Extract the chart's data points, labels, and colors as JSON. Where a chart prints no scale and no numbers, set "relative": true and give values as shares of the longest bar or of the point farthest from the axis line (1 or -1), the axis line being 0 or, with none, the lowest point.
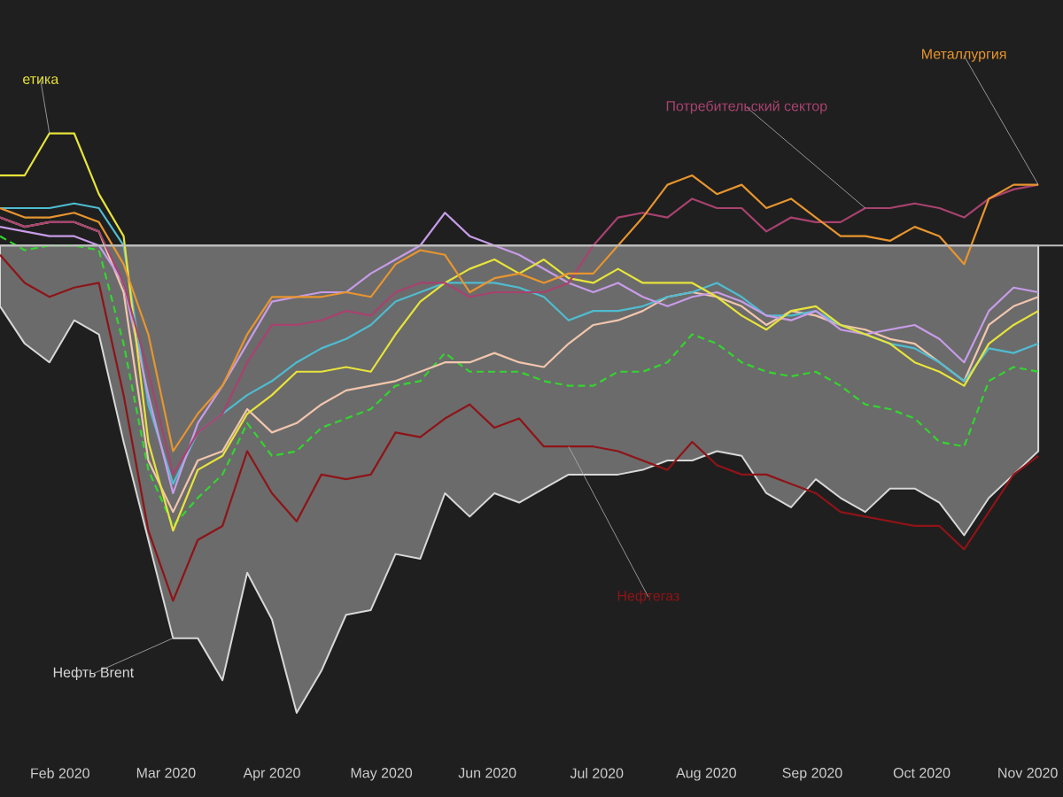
{
  "chart_data": {
    "type": "line",
    "relative": true,
    "x": [
      "2020-01-29",
      "2020-02-05",
      "2020-02-12",
      "2020-02-19",
      "2020-02-26",
      "2020-03-04",
      "2020-03-11",
      "2020-03-18",
      "2020-03-25",
      "2020-04-01",
      "2020-04-08",
      "2020-04-15",
      "2020-04-22",
      "2020-04-29",
      "2020-05-06",
      "2020-05-13",
      "2020-05-20",
      "2020-05-27",
      "2020-06-03",
      "2020-06-10",
      "2020-06-17",
      "2020-06-24",
      "2020-07-01",
      "2020-07-08",
      "2020-07-15",
      "2020-07-22",
      "2020-07-29",
      "2020-08-05",
      "2020-08-12",
      "2020-08-19",
      "2020-08-26",
      "2020-09-02",
      "2020-09-09",
      "2020-09-16",
      "2020-09-23",
      "2020-09-30",
      "2020-10-07",
      "2020-10-14",
      "2020-10-21",
      "2020-10-28",
      "2020-11-04",
      "2020-11-11",
      "2020-11-18"
    ],
    "xlim": [
      "2020-01-29",
      "2020-11-25"
    ],
    "xticks": [
      {
        "value": "2020-02-15",
        "label": "Feb 2020"
      },
      {
        "value": "2020-03-16",
        "label": "Mar 2020"
      },
      {
        "value": "2020-04-15",
        "label": "Apr 2020"
      },
      {
        "value": "2020-05-16",
        "label": "May 2020"
      },
      {
        "value": "2020-06-15",
        "label": "Jun 2020"
      },
      {
        "value": "2020-07-16",
        "label": "Jul 2020"
      },
      {
        "value": "2020-08-16",
        "label": "Aug 2020"
      },
      {
        "value": "2020-09-15",
        "label": "Sep 2020"
      },
      {
        "value": "2020-10-16",
        "label": "Oct 2020"
      },
      {
        "value": "2020-11-15",
        "label": "Nov 2020"
      }
    ],
    "series": [
      {
        "name": "Нефть Brent",
        "type": "area",
        "color": "#d8d8d8",
        "values": [
          -0.13,
          -0.21,
          -0.25,
          -0.16,
          -0.19,
          -0.42,
          -0.63,
          -0.84,
          -0.84,
          -0.93,
          -0.7,
          -0.8,
          -1,
          -0.91,
          -0.79,
          -0.78,
          -0.66,
          -0.67,
          -0.53,
          -0.58,
          -0.53,
          -0.55,
          -0.52,
          -0.49,
          -0.49,
          -0.49,
          -0.48,
          -0.46,
          -0.46,
          -0.44,
          -0.45,
          -0.53,
          -0.56,
          -0.5,
          -0.54,
          -0.57,
          -0.52,
          -0.52,
          -0.55,
          -0.62,
          -0.54,
          -0.49,
          -0.44
        ]
      },
      {
        "name": "Нефтегаз",
        "color": "#8e1418",
        "values": [
          -0.02,
          -0.08,
          -0.11,
          -0.09,
          -0.08,
          -0.32,
          -0.61,
          -0.76,
          -0.63,
          -0.6,
          -0.44,
          -0.53,
          -0.59,
          -0.49,
          -0.5,
          -0.49,
          -0.4,
          -0.41,
          -0.37,
          -0.34,
          -0.39,
          -0.37,
          -0.43,
          -0.43,
          -0.43,
          -0.44,
          -0.46,
          -0.48,
          -0.42,
          -0.47,
          -0.49,
          -0.49,
          -0.51,
          -0.53,
          -0.57,
          -0.58,
          -0.59,
          -0.6,
          -0.6,
          -0.65,
          -0.57,
          -0.49,
          -0.45
        ]
      },
      {
        "color": "#33d62e",
        "line_style": "dashed",
        "values": [
          0.02,
          -0.01,
          0,
          0,
          -0.01,
          -0.21,
          -0.48,
          -0.6,
          -0.54,
          -0.49,
          -0.38,
          -0.45,
          -0.44,
          -0.39,
          -0.37,
          -0.35,
          -0.3,
          -0.29,
          -0.23,
          -0.27,
          -0.27,
          -0.27,
          -0.29,
          -0.3,
          -0.3,
          -0.27,
          -0.27,
          -0.25,
          -0.19,
          -0.21,
          -0.25,
          -0.27,
          -0.28,
          -0.27,
          -0.3,
          -0.34,
          -0.35,
          -0.37,
          -0.42,
          -0.43,
          -0.29,
          -0.26,
          -0.27
        ]
      },
      {
        "color": "#f2c6ad",
        "values": [
          0.06,
          0.04,
          0.05,
          0.05,
          0.03,
          -0.1,
          -0.46,
          -0.57,
          -0.46,
          -0.44,
          -0.35,
          -0.4,
          -0.38,
          -0.34,
          -0.31,
          -0.3,
          -0.29,
          -0.27,
          -0.25,
          -0.25,
          -0.23,
          -0.25,
          -0.26,
          -0.21,
          -0.17,
          -0.16,
          -0.14,
          -0.11,
          -0.1,
          -0.11,
          -0.13,
          -0.17,
          -0.14,
          -0.15,
          -0.17,
          -0.18,
          -0.2,
          -0.21,
          -0.25,
          -0.29,
          -0.17,
          -0.13,
          -0.11
        ]
      },
      {
        "color": "#4fbcd0",
        "values": [
          0.08,
          0.08,
          0.08,
          0.09,
          0.08,
          0,
          -0.34,
          -0.51,
          -0.4,
          -0.36,
          -0.32,
          -0.29,
          -0.25,
          -0.22,
          -0.2,
          -0.17,
          -0.12,
          -0.1,
          -0.08,
          -0.08,
          -0.08,
          -0.09,
          -0.11,
          -0.16,
          -0.14,
          -0.14,
          -0.13,
          -0.11,
          -0.1,
          -0.08,
          -0.11,
          -0.15,
          -0.15,
          -0.14,
          -0.17,
          -0.19,
          -0.21,
          -0.22,
          -0.25,
          -0.29,
          -0.22,
          -0.23,
          -0.21
        ]
      },
      {
        "color": "#c79ce8",
        "values": [
          0.04,
          0.03,
          0.02,
          0.02,
          0,
          -0.08,
          -0.32,
          -0.53,
          -0.38,
          -0.3,
          -0.21,
          -0.12,
          -0.11,
          -0.1,
          -0.1,
          -0.06,
          -0.03,
          0,
          0.07,
          0.02,
          0,
          -0.02,
          -0.05,
          -0.08,
          -0.1,
          -0.08,
          -0.11,
          -0.13,
          -0.11,
          -0.1,
          -0.12,
          -0.15,
          -0.16,
          -0.14,
          -0.18,
          -0.19,
          -0.18,
          -0.17,
          -0.2,
          -0.25,
          -0.14,
          -0.09,
          -0.1
        ]
      },
      {
        "name": "етика",
        "color": "#e8e43a",
        "values": [
          0.15,
          0.15,
          0.24,
          0.24,
          0.11,
          0.02,
          -0.42,
          -0.61,
          -0.48,
          -0.45,
          -0.36,
          -0.32,
          -0.27,
          -0.27,
          -0.26,
          -0.27,
          -0.19,
          -0.12,
          -0.08,
          -0.05,
          -0.03,
          -0.06,
          -0.03,
          -0.07,
          -0.08,
          -0.05,
          -0.08,
          -0.08,
          -0.08,
          -0.11,
          -0.15,
          -0.18,
          -0.14,
          -0.13,
          -0.17,
          -0.19,
          -0.21,
          -0.25,
          -0.27,
          -0.3,
          -0.21,
          -0.17,
          -0.14
        ]
      },
      {
        "name": "Потребительский сектор",
        "color": "#a8426f",
        "values": [
          0.06,
          0.04,
          0.05,
          0.05,
          0.03,
          -0.08,
          -0.27,
          -0.49,
          -0.4,
          -0.36,
          -0.25,
          -0.17,
          -0.17,
          -0.16,
          -0.14,
          -0.15,
          -0.1,
          -0.08,
          -0.08,
          -0.11,
          -0.1,
          -0.1,
          -0.1,
          -0.08,
          0,
          0.06,
          0.07,
          0.06,
          0.1,
          0.08,
          0.08,
          0.03,
          0.06,
          0.05,
          0.05,
          0.08,
          0.08,
          0.09,
          0.08,
          0.06,
          0.1,
          0.12,
          0.13
        ]
      },
      {
        "name": "Металлургия",
        "color": "#e8952e",
        "values": [
          0.08,
          0.06,
          0.06,
          0.07,
          0.05,
          -0.04,
          -0.19,
          -0.44,
          -0.36,
          -0.3,
          -0.19,
          -0.11,
          -0.11,
          -0.11,
          -0.1,
          -0.11,
          -0.04,
          -0.01,
          -0.02,
          -0.1,
          -0.07,
          -0.06,
          -0.08,
          -0.06,
          -0.06,
          0,
          0.06,
          0.13,
          0.15,
          0.11,
          0.13,
          0.08,
          0.1,
          0.06,
          0.02,
          0.02,
          0.01,
          0.04,
          0.02,
          -0.04,
          0.1,
          0.13,
          0.13
        ]
      }
    ]
  }
}
